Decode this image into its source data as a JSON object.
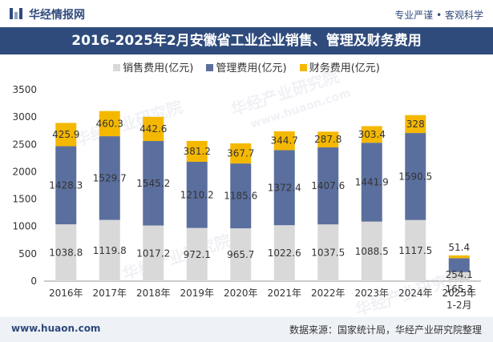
{
  "header": {
    "brand": "华经情报网",
    "tagline": "专业严谨 • 客观科学",
    "title": "2016-2025年2月安徽省工业企业销售、管理及财务费用"
  },
  "legend": [
    {
      "label": "销售费用(亿元)",
      "color": "#d9d9d9"
    },
    {
      "label": "管理费用(亿元)",
      "color": "#5b6f9e"
    },
    {
      "label": "财务费用(亿元)",
      "color": "#f5b800"
    }
  ],
  "watermark": {
    "brand": "华经产业研究院",
    "url": "www.huaon.com"
  },
  "chart_data": {
    "type": "bar",
    "stacked": true,
    "categories": [
      "2016年",
      "2017年",
      "2018年",
      "2019年",
      "2020年",
      "2021年",
      "2022年",
      "2023年",
      "2024年",
      "2025年\n1-2月"
    ],
    "series": [
      {
        "name": "销售费用(亿元)",
        "color": "#d9d9d9",
        "values": [
          1038.8,
          1119.8,
          1017.2,
          972.1,
          965.7,
          1022.6,
          1037.5,
          1088.5,
          1117.5,
          165.3
        ]
      },
      {
        "name": "管理费用(亿元)",
        "color": "#5b6f9e",
        "values": [
          1428.3,
          1529.7,
          1545.2,
          1210.2,
          1185.6,
          1372.4,
          1407.6,
          1441.9,
          1590.5,
          254.1
        ]
      },
      {
        "name": "财务费用(亿元)",
        "color": "#f5b800",
        "values": [
          425.9,
          460.3,
          442.6,
          381.2,
          367.7,
          344.7,
          287.8,
          303.4,
          328,
          51.4
        ]
      }
    ],
    "labels": [
      [
        "1038.8",
        "1119.8",
        "1017.2",
        "972.1",
        "965.7",
        "1022.6",
        "1037.5",
        "1088.5",
        "1117.5",
        "165.3"
      ],
      [
        "1428.3",
        "1529.7",
        "1545.2",
        "1210.2",
        "1185.6",
        "1372.4",
        "1407.6",
        "1441.9",
        "1590.5",
        "254.1"
      ],
      [
        "425.9",
        "460.3",
        "442.6",
        "381.2",
        "367.7",
        "344.7",
        "287.8",
        "303.4",
        "328",
        "51.4"
      ]
    ],
    "ylim": [
      0,
      3500
    ],
    "yticks": [
      0,
      500,
      1000,
      1500,
      2000,
      2500,
      3000,
      3500
    ],
    "grid": false,
    "legend_position": "top"
  },
  "footer": {
    "website": "www.huaon.com",
    "source": "数据来源：国家统计局，华经产业研究院整理"
  }
}
